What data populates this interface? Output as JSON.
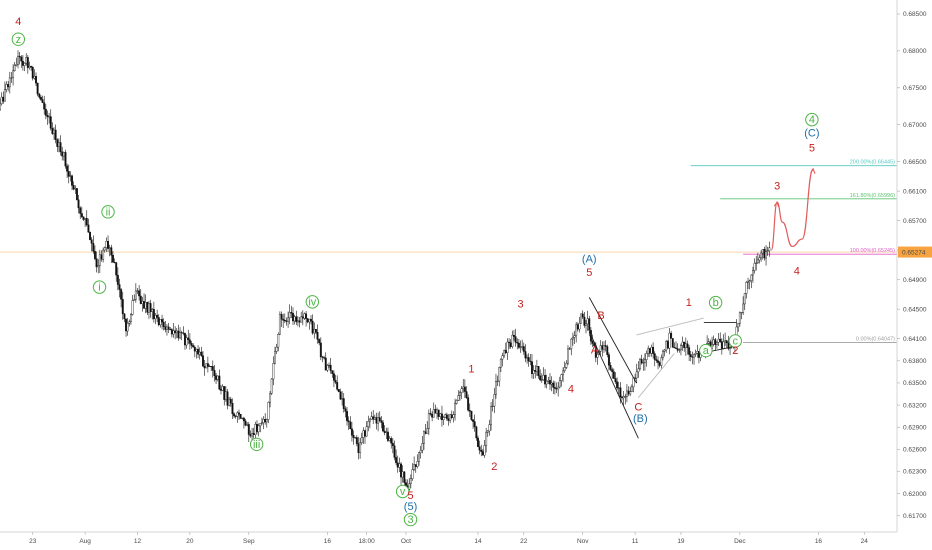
{
  "chart_data": {
    "type": "candlestick",
    "title": "",
    "xlabel": "",
    "ylabel": "",
    "ylim": [
      0.6148,
      0.6869
    ],
    "xlim": [
      0,
      137
    ],
    "y_ticks": [
      0.685,
      0.68,
      0.675,
      0.67,
      0.665,
      0.661,
      0.657,
      0.653,
      0.649,
      0.645,
      0.641,
      0.638,
      0.635,
      0.632,
      0.629,
      0.626,
      0.623,
      0.62,
      0.617
    ],
    "y_tick_labels": [
      "0.68500",
      "0.68000",
      "0.67500",
      "0.67000",
      "0.66500",
      "0.66100",
      "0.65700",
      "0.65300",
      "0.64900",
      "0.64500",
      "0.64100",
      "0.63800",
      "0.63500",
      "0.63200",
      "0.62900",
      "0.62600",
      "0.62300",
      "0.62000",
      "0.61700"
    ],
    "x_ticks": [
      {
        "x": 5,
        "label": "23"
      },
      {
        "x": 13,
        "label": "Aug"
      },
      {
        "x": 21,
        "label": "12"
      },
      {
        "x": 29,
        "label": "20"
      },
      {
        "x": 38,
        "label": "Sep"
      },
      {
        "x": 50,
        "label": "16"
      },
      {
        "x": 56,
        "label": "18:00"
      },
      {
        "x": 62,
        "label": "Oct"
      },
      {
        "x": 73,
        "label": "14"
      },
      {
        "x": 80,
        "label": "22"
      },
      {
        "x": 89,
        "label": "Nov"
      },
      {
        "x": 97,
        "label": "11"
      },
      {
        "x": 104,
        "label": "19"
      },
      {
        "x": 113,
        "label": "Dec"
      },
      {
        "x": 125,
        "label": "16"
      },
      {
        "x": 132,
        "label": "24"
      }
    ],
    "price_path": [
      {
        "x": 0,
        "y": 0.672
      },
      {
        "x": 3,
        "y": 0.679
      },
      {
        "x": 4.5,
        "y": 0.6785
      },
      {
        "x": 6,
        "y": 0.6745
      },
      {
        "x": 8,
        "y": 0.67
      },
      {
        "x": 10,
        "y": 0.6655
      },
      {
        "x": 12,
        "y": 0.66
      },
      {
        "x": 13.5,
        "y": 0.656
      },
      {
        "x": 15,
        "y": 0.6505
      },
      {
        "x": 16.5,
        "y": 0.6545
      },
      {
        "x": 18,
        "y": 0.65
      },
      {
        "x": 19.5,
        "y": 0.6425
      },
      {
        "x": 21,
        "y": 0.647
      },
      {
        "x": 24,
        "y": 0.644
      },
      {
        "x": 27,
        "y": 0.642
      },
      {
        "x": 30,
        "y": 0.6395
      },
      {
        "x": 33,
        "y": 0.636
      },
      {
        "x": 36,
        "y": 0.631
      },
      {
        "x": 38.5,
        "y": 0.6282
      },
      {
        "x": 41,
        "y": 0.63
      },
      {
        "x": 43,
        "y": 0.644
      },
      {
        "x": 46,
        "y": 0.644
      },
      {
        "x": 47.5,
        "y": 0.6435
      },
      {
        "x": 50,
        "y": 0.6375
      },
      {
        "x": 52,
        "y": 0.634
      },
      {
        "x": 55,
        "y": 0.626
      },
      {
        "x": 57,
        "y": 0.631
      },
      {
        "x": 59,
        "y": 0.629
      },
      {
        "x": 61,
        "y": 0.624
      },
      {
        "x": 62.5,
        "y": 0.6205
      },
      {
        "x": 64,
        "y": 0.625
      },
      {
        "x": 66,
        "y": 0.631
      },
      {
        "x": 69,
        "y": 0.63
      },
      {
        "x": 71,
        "y": 0.634
      },
      {
        "x": 72.5,
        "y": 0.629
      },
      {
        "x": 74,
        "y": 0.625
      },
      {
        "x": 75.5,
        "y": 0.6325
      },
      {
        "x": 77,
        "y": 0.639
      },
      {
        "x": 78.5,
        "y": 0.641
      },
      {
        "x": 80,
        "y": 0.64
      },
      {
        "x": 81.5,
        "y": 0.637
      },
      {
        "x": 83,
        "y": 0.636
      },
      {
        "x": 85,
        "y": 0.634
      },
      {
        "x": 86,
        "y": 0.6358
      },
      {
        "x": 87.5,
        "y": 0.641
      },
      {
        "x": 89,
        "y": 0.644
      },
      {
        "x": 90,
        "y": 0.643
      },
      {
        "x": 91.2,
        "y": 0.639
      },
      {
        "x": 92.5,
        "y": 0.64
      },
      {
        "x": 94,
        "y": 0.635
      },
      {
        "x": 95.5,
        "y": 0.633
      },
      {
        "x": 96.5,
        "y": 0.6345
      },
      {
        "x": 98,
        "y": 0.638
      },
      {
        "x": 99.5,
        "y": 0.6395
      },
      {
        "x": 101,
        "y": 0.638
      },
      {
        "x": 102.5,
        "y": 0.641
      },
      {
        "x": 104,
        "y": 0.6395
      },
      {
        "x": 105,
        "y": 0.64
      },
      {
        "x": 106.5,
        "y": 0.6385
      },
      {
        "x": 108,
        "y": 0.6402
      },
      {
        "x": 109.5,
        "y": 0.6405
      },
      {
        "x": 111,
        "y": 0.64
      },
      {
        "x": 112.5,
        "y": 0.6408
      },
      {
        "x": 113.5,
        "y": 0.645
      },
      {
        "x": 114.5,
        "y": 0.649
      },
      {
        "x": 115.5,
        "y": 0.651
      },
      {
        "x": 116.5,
        "y": 0.6525
      },
      {
        "x": 117.5,
        "y": 0.6527
      }
    ],
    "horizontal_levels": [
      {
        "y": 0.66445,
        "label": "200.00%(0.66445)",
        "color": "#55c9c2",
        "x_start": 105.5
      },
      {
        "y": 0.65996,
        "label": "161.80%(0.65996)",
        "color": "#5cc470",
        "x_start": 110
      },
      {
        "y": 0.65245,
        "label": "100.00%(0.65245)",
        "color": "#e05fc8",
        "x_start": 113.5
      },
      {
        "y": 0.64047,
        "label": "0.00%(0.64047)",
        "color": "#9e9e9e",
        "x_start": 113.5
      }
    ],
    "current_price_line": {
      "y": 0.65274,
      "label": "0.65274",
      "color": "#f7a440"
    },
    "wave_labels": [
      {
        "x": 2.8,
        "y": 0.6835,
        "text": "4",
        "color": "#c71e1e",
        "circled": false
      },
      {
        "x": 2.8,
        "y": 0.6811,
        "text": "z",
        "color": "#4bb543",
        "circled": true
      },
      {
        "x": 16.5,
        "y": 0.6577,
        "text": "ii",
        "color": "#4bb543",
        "circled": true
      },
      {
        "x": 15.2,
        "y": 0.6475,
        "text": "i",
        "color": "#4bb543",
        "circled": true
      },
      {
        "x": 47.7,
        "y": 0.6455,
        "text": "iv",
        "color": "#4bb543",
        "circled": true
      },
      {
        "x": 39.2,
        "y": 0.6262,
        "text": "iii",
        "color": "#4bb543",
        "circled": true
      },
      {
        "x": 61.5,
        "y": 0.6198,
        "text": "v",
        "color": "#4bb543",
        "circled": true
      },
      {
        "x": 62.7,
        "y": 0.6193,
        "text": "5",
        "color": "#c71e1e",
        "circled": false
      },
      {
        "x": 62.7,
        "y": 0.6178,
        "text": "(5)",
        "color": "#1e6fa8",
        "circled": false
      },
      {
        "x": 62.7,
        "y": 0.616,
        "text": "3",
        "color": "#4bb543",
        "circled": true
      },
      {
        "x": 72,
        "y": 0.6364,
        "text": "1",
        "color": "#c71e1e",
        "circled": false
      },
      {
        "x": 75.5,
        "y": 0.6232,
        "text": "2",
        "color": "#c71e1e",
        "circled": false
      },
      {
        "x": 79.5,
        "y": 0.6452,
        "text": "3",
        "color": "#c71e1e",
        "circled": false
      },
      {
        "x": 87.2,
        "y": 0.6337,
        "text": "4",
        "color": "#c71e1e",
        "circled": false
      },
      {
        "x": 90,
        "y": 0.6513,
        "text": "(A)",
        "color": "#1e6fa8",
        "circled": false
      },
      {
        "x": 90,
        "y": 0.6495,
        "text": "5",
        "color": "#c71e1e",
        "circled": false
      },
      {
        "x": 91.8,
        "y": 0.6437,
        "text": "B",
        "color": "#c71e1e",
        "circled": false
      },
      {
        "x": 90.8,
        "y": 0.639,
        "text": "A",
        "color": "#c71e1e",
        "circled": false
      },
      {
        "x": 97.5,
        "y": 0.6313,
        "text": "C",
        "color": "#c71e1e",
        "circled": false
      },
      {
        "x": 97.8,
        "y": 0.6297,
        "text": "(B)",
        "color": "#1e6fa8",
        "circled": false
      },
      {
        "x": 105.2,
        "y": 0.6454,
        "text": "1",
        "color": "#c71e1e",
        "circled": false
      },
      {
        "x": 109.3,
        "y": 0.6454,
        "text": "b",
        "color": "#4bb543",
        "circled": true
      },
      {
        "x": 107.8,
        "y": 0.6389,
        "text": "a",
        "color": "#4bb543",
        "circled": true
      },
      {
        "x": 112.3,
        "y": 0.6402,
        "text": "c",
        "color": "#4bb543",
        "circled": true
      },
      {
        "x": 112.3,
        "y": 0.6389,
        "text": "2",
        "color": "#c71e1e",
        "circled": false
      },
      {
        "x": 118.7,
        "y": 0.6612,
        "text": "3",
        "color": "#c71e1e",
        "circled": false
      },
      {
        "x": 121.7,
        "y": 0.6497,
        "text": "4",
        "color": "#c71e1e",
        "circled": false
      },
      {
        "x": 124,
        "y": 0.6702,
        "text": "4",
        "color": "#4bb543",
        "circled": true
      },
      {
        "x": 124,
        "y": 0.6684,
        "text": "(C)",
        "color": "#1e6fa8",
        "circled": false
      },
      {
        "x": 124,
        "y": 0.6664,
        "text": "5",
        "color": "#c71e1e",
        "circled": false
      }
    ],
    "trendlines": [
      {
        "points": [
          [
            90,
            0.6466
          ],
          [
            97.2,
            0.635
          ]
        ],
        "color": "#222222"
      },
      {
        "points": [
          [
            90,
            0.642
          ],
          [
            97.5,
            0.6275
          ]
        ],
        "color": "#222222"
      },
      {
        "points": [
          [
            97.2,
            0.6415
          ],
          [
            107.5,
            0.6438
          ]
        ],
        "color": "#bbbbbb"
      },
      {
        "points": [
          [
            97.5,
            0.633
          ],
          [
            103,
            0.639
          ]
        ],
        "color": "#bbbbbb"
      },
      {
        "points": [
          [
            107.5,
            0.6432
          ],
          [
            112.5,
            0.6432
          ]
        ],
        "color": "#222222"
      },
      {
        "points": [
          [
            107,
            0.639
          ],
          [
            112.5,
            0.64
          ]
        ],
        "color": "#222222"
      }
    ],
    "projection": {
      "color": "#e35b5b",
      "points": [
        [
          117.8,
          0.653
        ],
        [
          118.7,
          0.6595
        ],
        [
          119.5,
          0.6568
        ],
        [
          121,
          0.6535
        ],
        [
          122.5,
          0.6545
        ],
        [
          124.2,
          0.664
        ]
      ]
    },
    "grid": false
  }
}
